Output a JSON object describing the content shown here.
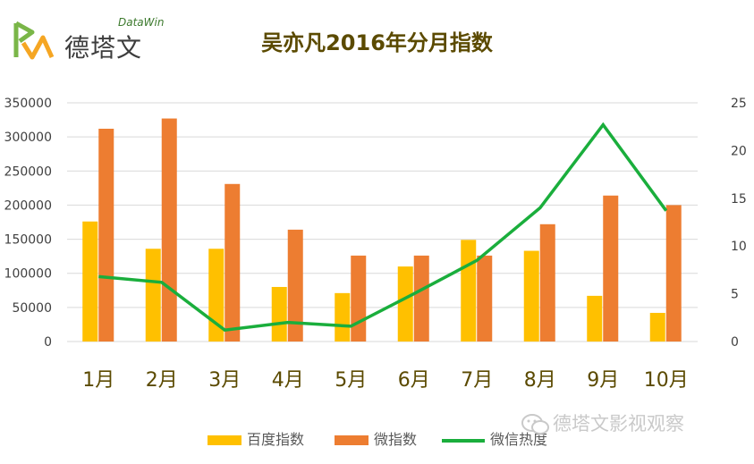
{
  "logo": {
    "brand": "DataWin",
    "name": "德塔文"
  },
  "watermark": {
    "text": "德塔文影视观察",
    "icon": "wechat-icon"
  },
  "colors": {
    "baidu": "#FFC000",
    "weibo": "#ED7D31",
    "wechat": "#1AAE3C",
    "title": "#5b4a00",
    "grid": "#d9d9d9"
  },
  "chart_data": {
    "type": "bar",
    "title": "吴亦凡2016年分月指数",
    "xlabel": "",
    "ylabel": "",
    "categories": [
      "1月",
      "2月",
      "3月",
      "4月",
      "5月",
      "6月",
      "7月",
      "8月",
      "9月",
      "10月"
    ],
    "series": [
      {
        "name": "百度指数",
        "type": "bar",
        "axis": "left",
        "values": [
          176000,
          136000,
          136000,
          80000,
          71000,
          110000,
          149000,
          133000,
          67000,
          42000
        ]
      },
      {
        "name": "微指数",
        "type": "bar",
        "axis": "left",
        "values": [
          312000,
          327000,
          231000,
          164000,
          126000,
          126000,
          126000,
          172000,
          214000,
          200000
        ]
      },
      {
        "name": "微信热度",
        "type": "line",
        "axis": "right",
        "values": [
          6.8,
          6.2,
          1.2,
          2.0,
          1.6,
          5.0,
          8.5,
          14.0,
          22.7,
          13.7
        ]
      }
    ],
    "ylim": [
      0,
      350000
    ],
    "yticks": [
      "0",
      "50000",
      "100000",
      "150000",
      "200000",
      "250000",
      "300000",
      "350000"
    ],
    "y2lim": [
      0,
      25
    ],
    "y2ticks": [
      "0",
      "5",
      "10",
      "15",
      "20",
      "25"
    ],
    "grid": true,
    "legend": "bottom"
  }
}
